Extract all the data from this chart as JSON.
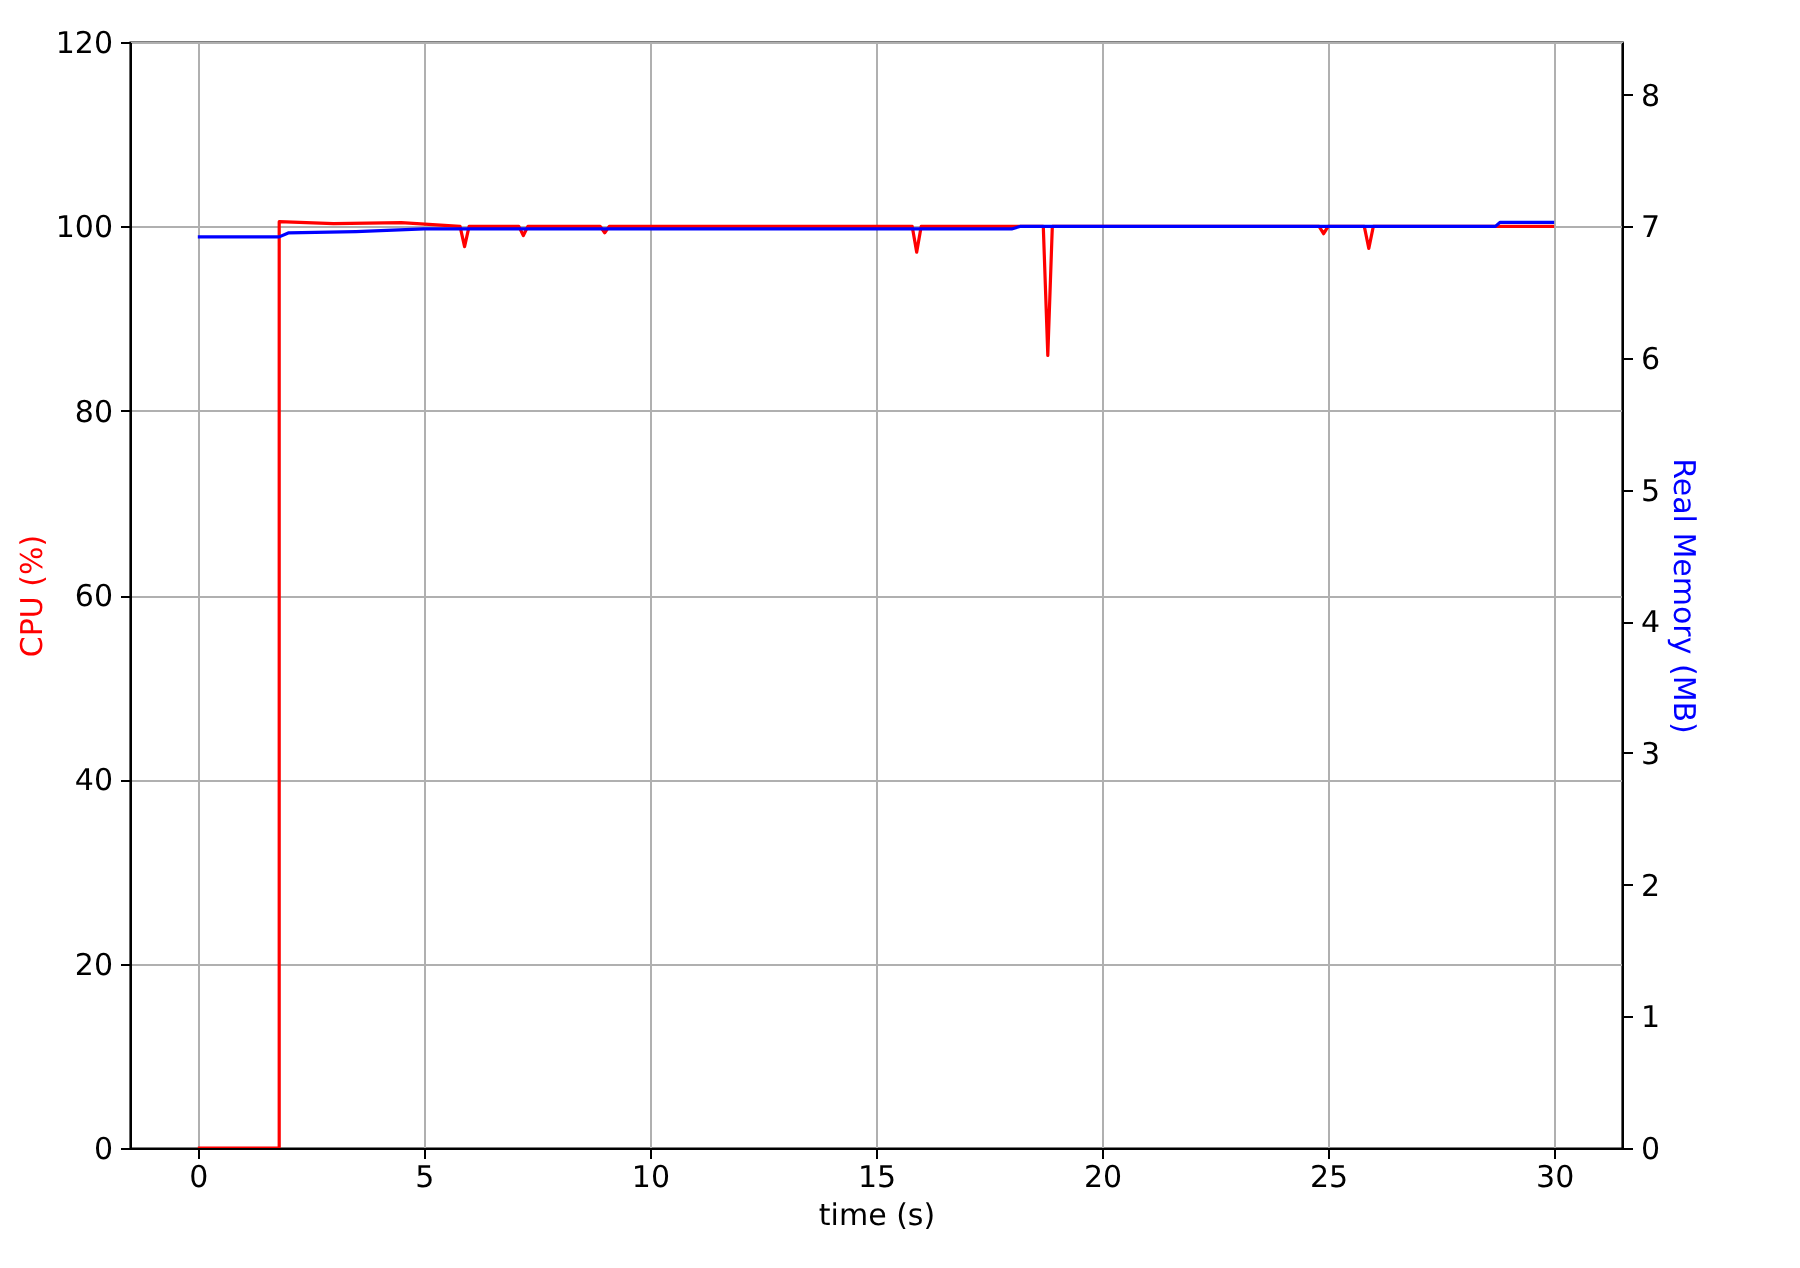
{
  "chart_data": {
    "type": "line",
    "xlabel": "time (s)",
    "ylabel": "CPU (%)",
    "y2label": "Real Memory (MB)",
    "xlim": [
      -1.5,
      31.5
    ],
    "xticks": [
      0,
      5,
      10,
      15,
      20,
      25,
      30
    ],
    "ylim": [
      0,
      120
    ],
    "yticks": [
      0,
      20,
      40,
      60,
      80,
      100,
      120
    ],
    "y2lim": [
      0,
      8.4
    ],
    "y2ticks": [
      0,
      1,
      2,
      3,
      4,
      5,
      6,
      7,
      8
    ],
    "grid": true,
    "series": [
      {
        "color": "#ff0000",
        "x": [
          0,
          1.8,
          1.8,
          3,
          4.5,
          5.8,
          5.9,
          6.0,
          7.1,
          7.2,
          7.3,
          8.9,
          9,
          9.1,
          15.8,
          15.9,
          16,
          18.7,
          18.8,
          18.9,
          24.8,
          24.9,
          25,
          25.8,
          25.9,
          26,
          30
        ],
        "values": [
          0,
          0,
          100.5,
          100.3,
          100.4,
          100,
          97.8,
          100,
          100,
          99,
          100,
          100,
          99.3,
          100,
          100,
          97.2,
          100,
          100,
          86,
          100,
          100,
          99.2,
          100,
          100,
          97.6,
          100,
          100
        ]
      },
      {
        "color": "#0000ff",
        "axis": "y2",
        "x": [
          0,
          1.8,
          2,
          3.5,
          5,
          18,
          18.2,
          28.7,
          28.8,
          30
        ],
        "values": [
          6.92,
          6.92,
          6.95,
          6.96,
          6.98,
          6.98,
          7.0,
          7.0,
          7.03,
          7.03
        ]
      }
    ]
  }
}
